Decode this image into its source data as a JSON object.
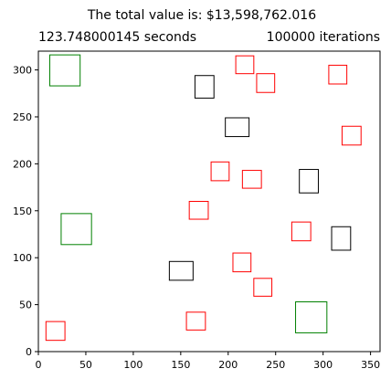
{
  "chart_data": {
    "type": "scatter",
    "title": "The total value is: $13,598,762.016",
    "subtitle_left": "123.748000145 seconds",
    "subtitle_right": "100000 iterations",
    "xlabel": "",
    "ylabel": "",
    "xlim": [
      0,
      360
    ],
    "ylim": [
      0,
      320
    ],
    "x_ticks": [
      0,
      50,
      100,
      150,
      200,
      250,
      300,
      350
    ],
    "y_ticks": [
      0,
      50,
      100,
      150,
      200,
      250,
      300
    ],
    "grid": false,
    "legend": "none",
    "series": [
      {
        "color": "#008000",
        "rects": [
          {
            "x": 12,
            "y": 283,
            "w": 32,
            "h": 33
          },
          {
            "x": 24,
            "y": 114,
            "w": 32,
            "h": 33
          },
          {
            "x": 271,
            "y": 20,
            "w": 33,
            "h": 33
          }
        ]
      },
      {
        "color": "#000000",
        "rects": [
          {
            "x": 165,
            "y": 270,
            "w": 20,
            "h": 24
          },
          {
            "x": 197,
            "y": 229,
            "w": 25,
            "h": 20
          },
          {
            "x": 275,
            "y": 169,
            "w": 20,
            "h": 25
          },
          {
            "x": 309,
            "y": 108,
            "w": 20,
            "h": 25
          },
          {
            "x": 138,
            "y": 76,
            "w": 25,
            "h": 20
          }
        ]
      },
      {
        "color": "#ff0000",
        "rects": [
          {
            "x": 208,
            "y": 296,
            "w": 19,
            "h": 19
          },
          {
            "x": 306,
            "y": 285,
            "w": 19,
            "h": 20
          },
          {
            "x": 230,
            "y": 276,
            "w": 19,
            "h": 20
          },
          {
            "x": 320,
            "y": 220,
            "w": 20,
            "h": 20
          },
          {
            "x": 182,
            "y": 182,
            "w": 19,
            "h": 20
          },
          {
            "x": 215,
            "y": 174,
            "w": 20,
            "h": 19
          },
          {
            "x": 159,
            "y": 141,
            "w": 20,
            "h": 19
          },
          {
            "x": 267,
            "y": 118,
            "w": 20,
            "h": 20
          },
          {
            "x": 205,
            "y": 85,
            "w": 19,
            "h": 20
          },
          {
            "x": 227,
            "y": 59,
            "w": 19,
            "h": 19
          },
          {
            "x": 156,
            "y": 23,
            "w": 20,
            "h": 19
          },
          {
            "x": 8,
            "y": 12,
            "w": 20,
            "h": 20
          }
        ]
      }
    ]
  }
}
